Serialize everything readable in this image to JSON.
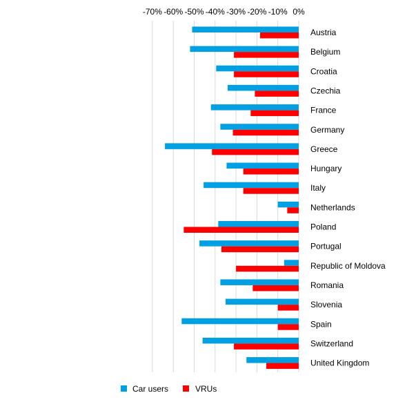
{
  "chart_data": {
    "type": "bar",
    "orientation": "horizontal",
    "title": "",
    "xlabel": "",
    "ylabel": "",
    "xlim": [
      -70,
      0
    ],
    "x_ticks": [
      -70,
      -60,
      -50,
      -40,
      -30,
      -20,
      -10,
      0
    ],
    "x_tick_labels": [
      "-70%",
      "-60%",
      "-50%",
      "-40%",
      "-30%",
      "-20%",
      "-10%",
      "0%"
    ],
    "x_axis_position": "top",
    "grid": true,
    "legend_position": "bottom",
    "categories": [
      "Austria",
      "Belgium",
      "Croatia",
      "Czechia",
      "France",
      "Germany",
      "Greece",
      "Hungary",
      "Italy",
      "Netherlands",
      "Poland",
      "Portugal",
      "Republic of Moldova",
      "Romania",
      "Slovenia",
      "Spain",
      "Switzerland",
      "United Kingdom"
    ],
    "series": [
      {
        "name": "Car users",
        "color": "#00A0E3",
        "values": [
          -51,
          -52,
          -39.5,
          -34,
          -42,
          -37.5,
          -64,
          -34.5,
          -45.5,
          -10,
          -38.5,
          -47.5,
          -7,
          -37.5,
          -35,
          -56,
          -46,
          -25
        ]
      },
      {
        "name": "VRUs",
        "color": "#FF0000",
        "values": [
          -18.5,
          -31,
          -31,
          -21,
          -23,
          -31.5,
          -41.5,
          -26.5,
          -26.5,
          -5.5,
          -55,
          -37,
          -30,
          -22,
          -10,
          -10,
          -31,
          -15.5
        ]
      }
    ]
  }
}
